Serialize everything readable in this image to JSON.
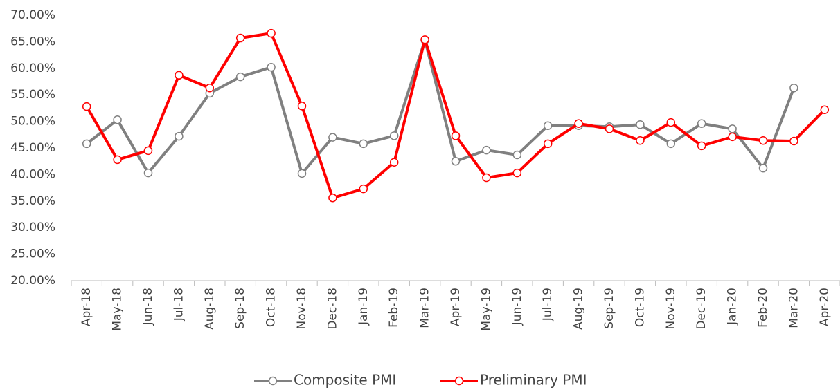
{
  "chart_data": {
    "type": "line",
    "categories": [
      "Apr-18",
      "May-18",
      "Jun-18",
      "Jul-18",
      "Aug-18",
      "Sep-18",
      "Oct-18",
      "Nov-18",
      "Dec-18",
      "Jan-19",
      "Feb-19",
      "Mar-19",
      "Apr-19",
      "May-19",
      "Jun-19",
      "Jul-19",
      "Aug-19",
      "Sep-19",
      "Oct-19",
      "Nov-19",
      "Dec-19",
      "Jan-20",
      "Feb-20",
      "Mar-20",
      "Apr-20"
    ],
    "series": [
      {
        "name": "Composite PMI",
        "color": "#808080",
        "values": [
          45.8,
          50.3,
          40.3,
          47.2,
          55.3,
          58.4,
          60.2,
          40.2,
          47.0,
          45.8,
          47.3,
          65.3,
          42.5,
          44.6,
          43.7,
          49.2,
          49.2,
          49.0,
          49.4,
          45.8,
          49.6,
          48.6,
          41.2,
          56.3,
          null
        ]
      },
      {
        "name": "Preliminary PMI",
        "color": "#ff0000",
        "values": [
          52.8,
          42.8,
          44.5,
          58.7,
          56.3,
          65.7,
          66.6,
          52.9,
          35.6,
          37.3,
          42.3,
          65.4,
          47.3,
          39.4,
          40.3,
          45.8,
          49.6,
          48.6,
          46.4,
          49.8,
          45.4,
          47.1,
          46.4,
          46.3,
          52.2
        ]
      }
    ],
    "ylim": [
      20,
      70
    ],
    "yticks": [
      {
        "value": 20,
        "label": "20.00%"
      },
      {
        "value": 25,
        "label": "25.00%"
      },
      {
        "value": 30,
        "label": "30.00%"
      },
      {
        "value": 35,
        "label": "35.00%"
      },
      {
        "value": 40,
        "label": "40.00%"
      },
      {
        "value": 45,
        "label": "45.00%"
      },
      {
        "value": 50,
        "label": "50.00%"
      },
      {
        "value": 55,
        "label": "55.00%"
      },
      {
        "value": 60,
        "label": "60.00%"
      },
      {
        "value": 65,
        "label": "65.00%"
      },
      {
        "value": 70,
        "label": "70.00%"
      }
    ],
    "grid": false,
    "legend": "bottom"
  }
}
